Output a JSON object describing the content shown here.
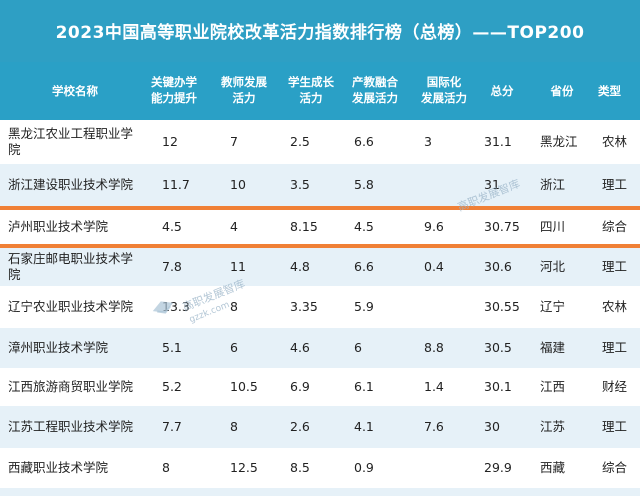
{
  "title": "2023中国高等职业院校改革活力指数排行榜（总榜）——TOP200",
  "columns": [
    {
      "label": "学校名称",
      "label2": ""
    },
    {
      "label": "关键办学",
      "label2": "能力提升"
    },
    {
      "label": "教师发展",
      "label2": "活力"
    },
    {
      "label": "学生成长",
      "label2": "活力"
    },
    {
      "label": "产教融合",
      "label2": "发展活力"
    },
    {
      "label": "国际化",
      "label2": "发展活力"
    },
    {
      "label": "总分",
      "label2": ""
    },
    {
      "label": "省份",
      "label2": ""
    },
    {
      "label": "类型",
      "label2": ""
    }
  ],
  "rows": [
    {
      "name": "黑龙江农业工程职业学",
      "name2": "院",
      "key": "12",
      "teacher": "7",
      "student": "2.5",
      "industry": "6.6",
      "intl": "3",
      "total": "31.1",
      "province": "黑龙江",
      "type": "农林"
    },
    {
      "name": "浙江建设职业技术学院",
      "name2": "",
      "key": "11.7",
      "teacher": "10",
      "student": "3.5",
      "industry": "5.8",
      "intl": "",
      "total": "31",
      "province": "浙江",
      "type": "理工"
    },
    {
      "name": "泸州职业技术学院",
      "name2": "",
      "key": "4.5",
      "teacher": "4",
      "student": "8.15",
      "industry": "4.5",
      "intl": "9.6",
      "total": "30.75",
      "province": "四川",
      "type": "综合"
    },
    {
      "name": "石家庄邮电职业技术学",
      "name2": "院",
      "key": "7.8",
      "teacher": "11",
      "student": "4.8",
      "industry": "6.6",
      "intl": "0.4",
      "total": "30.6",
      "province": "河北",
      "type": "理工"
    },
    {
      "name": "辽宁农业职业技术学院",
      "name2": "",
      "key": "13.3",
      "teacher": "8",
      "student": "3.35",
      "industry": "5.9",
      "intl": "",
      "total": "30.55",
      "province": "辽宁",
      "type": "农林"
    },
    {
      "name": "漳州职业技术学院",
      "name2": "",
      "key": "5.1",
      "teacher": "6",
      "student": "4.6",
      "industry": "6",
      "intl": "8.8",
      "total": "30.5",
      "province": "福建",
      "type": "理工"
    },
    {
      "name": "江西旅游商贸职业学院",
      "name2": "",
      "key": "5.2",
      "teacher": "10.5",
      "student": "6.9",
      "industry": "6.1",
      "intl": "1.4",
      "total": "30.1",
      "province": "江西",
      "type": "财经"
    },
    {
      "name": "江苏工程职业技术学院",
      "name2": "",
      "key": "7.7",
      "teacher": "8",
      "student": "2.6",
      "industry": "4.1",
      "intl": "7.6",
      "total": "30",
      "province": "江苏",
      "type": "理工"
    },
    {
      "name": "西藏职业技术学院",
      "name2": "",
      "key": "8",
      "teacher": "12.5",
      "student": "8.5",
      "industry": "0.9",
      "intl": "",
      "total": "29.9",
      "province": "西藏",
      "type": "综合"
    }
  ],
  "watermark": {
    "text": "高职发展智库",
    "url": "gzzk.com"
  },
  "accent_colors": {
    "header": "#2aa0c6",
    "highlight": "#f08036",
    "row_alt": "#e6f1f8"
  }
}
